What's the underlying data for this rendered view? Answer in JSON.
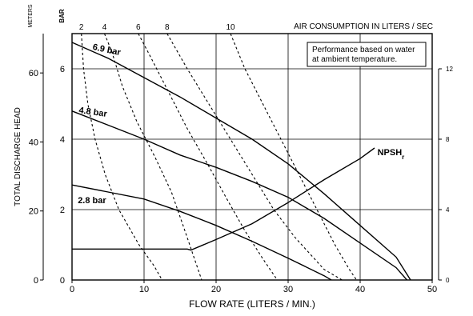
{
  "chart_data": {
    "type": "line",
    "xlabel": "FLOW RATE (LITERS / MIN.)",
    "ylabel": "TOTAL DISCHARGE HEAD",
    "left_unit_label": "METERS",
    "bar_unit_label": "BAR",
    "top_label": "AIR CONSUMPTION IN LITERS / SEC",
    "note_lines": [
      "Performance based on water",
      "at ambient temperature."
    ],
    "xlim": [
      0,
      50
    ],
    "ylim_bar": [
      0,
      7
    ],
    "x_ticks": [
      0,
      10,
      20,
      30,
      40,
      50
    ],
    "bar_ticks": [
      0,
      2,
      4,
      6
    ],
    "meter_ticks": [
      0,
      20,
      40,
      60
    ],
    "right_ticks": [
      0,
      4,
      8,
      12
    ],
    "air_ticks": [
      "2",
      "4",
      "6",
      "8",
      "10"
    ],
    "grid": true,
    "series": [
      {
        "name": "6.9 bar",
        "style": "solid",
        "points": [
          [
            0,
            6.75
          ],
          [
            5,
            6.3
          ],
          [
            10,
            5.75
          ],
          [
            15,
            5.2
          ],
          [
            20,
            4.6
          ],
          [
            25,
            4.0
          ],
          [
            30,
            3.3
          ],
          [
            35,
            2.45
          ],
          [
            40,
            1.55
          ],
          [
            45,
            0.65
          ],
          [
            47,
            0
          ]
        ]
      },
      {
        "name": "4.8 bar",
        "style": "solid",
        "points": [
          [
            0,
            4.8
          ],
          [
            5,
            4.4
          ],
          [
            10,
            4.0
          ],
          [
            15,
            3.55
          ],
          [
            20,
            3.2
          ],
          [
            25,
            2.8
          ],
          [
            30,
            2.35
          ],
          [
            35,
            1.75
          ],
          [
            40,
            1.05
          ],
          [
            45,
            0.35
          ],
          [
            46.5,
            0
          ]
        ]
      },
      {
        "name": "2.8 bar",
        "style": "solid",
        "points": [
          [
            0,
            2.7
          ],
          [
            5,
            2.5
          ],
          [
            10,
            2.3
          ],
          [
            15,
            1.95
          ],
          [
            20,
            1.55
          ],
          [
            25,
            1.1
          ],
          [
            30,
            0.62
          ],
          [
            35,
            0.12
          ],
          [
            36,
            0
          ]
        ]
      },
      {
        "name": "NPSHr",
        "style": "solid",
        "points": [
          [
            0,
            0.88
          ],
          [
            10,
            0.88
          ],
          [
            16,
            0.88
          ],
          [
            16.5,
            0.85
          ],
          [
            20,
            1.15
          ],
          [
            25,
            1.6
          ],
          [
            30,
            2.2
          ],
          [
            35,
            2.85
          ],
          [
            40,
            3.45
          ],
          [
            42,
            3.75
          ]
        ]
      },
      {
        "air": "2",
        "style": "dashed",
        "points": [
          [
            1.3,
            7
          ],
          [
            1.6,
            6.0
          ],
          [
            2.2,
            5.0
          ],
          [
            3.2,
            4.0
          ],
          [
            4.6,
            3.0
          ],
          [
            6.5,
            2.0
          ],
          [
            9.3,
            1.0
          ],
          [
            11.4,
            0.4
          ],
          [
            12.5,
            0
          ]
        ]
      },
      {
        "air": "4",
        "style": "dashed",
        "points": [
          [
            4.5,
            7
          ],
          [
            5.5,
            6.5
          ],
          [
            7.0,
            5.5
          ],
          [
            9.0,
            4.5
          ],
          [
            11.5,
            3.5
          ],
          [
            13.8,
            2.5
          ],
          [
            15.5,
            1.5
          ],
          [
            17.0,
            0.6
          ],
          [
            18.0,
            0
          ]
        ]
      },
      {
        "air": "6",
        "style": "dashed",
        "points": [
          [
            9.2,
            7
          ],
          [
            11.0,
            6.3
          ],
          [
            13.5,
            5.3
          ],
          [
            16.0,
            4.3
          ],
          [
            18.8,
            3.3
          ],
          [
            21.5,
            2.3
          ],
          [
            24.0,
            1.4
          ],
          [
            26.5,
            0.6
          ],
          [
            28.5,
            0
          ]
        ]
      },
      {
        "air": "8",
        "style": "dashed",
        "points": [
          [
            13.2,
            7
          ],
          [
            16.0,
            6.0
          ],
          [
            19.0,
            5.0
          ],
          [
            22.0,
            4.0
          ],
          [
            25.0,
            3.0
          ],
          [
            28.0,
            2.0
          ],
          [
            31.0,
            1.2
          ],
          [
            35.0,
            0.3
          ],
          [
            37.5,
            0
          ]
        ]
      },
      {
        "air": "10",
        "style": "dashed",
        "points": [
          [
            22.0,
            7
          ],
          [
            24.0,
            6.0
          ],
          [
            26.5,
            5.0
          ],
          [
            29.0,
            4.0
          ],
          [
            31.5,
            3.0
          ],
          [
            34.0,
            2.0
          ],
          [
            36.5,
            1.0
          ],
          [
            38.5,
            0.3
          ],
          [
            39.5,
            0
          ]
        ]
      }
    ],
    "curve_labels": [
      {
        "text": "6.9 bar",
        "at": [
          2.8,
          6.55
        ],
        "angle": 12
      },
      {
        "text": "4.8 bar",
        "at": [
          0.9,
          4.75
        ],
        "angle": 8
      },
      {
        "text": "2.8 bar",
        "at": [
          0.8,
          2.18
        ],
        "angle": 0
      },
      {
        "text": "NPSH",
        "sub": "r",
        "at": [
          42.4,
          3.55
        ],
        "angle": 0
      }
    ]
  }
}
